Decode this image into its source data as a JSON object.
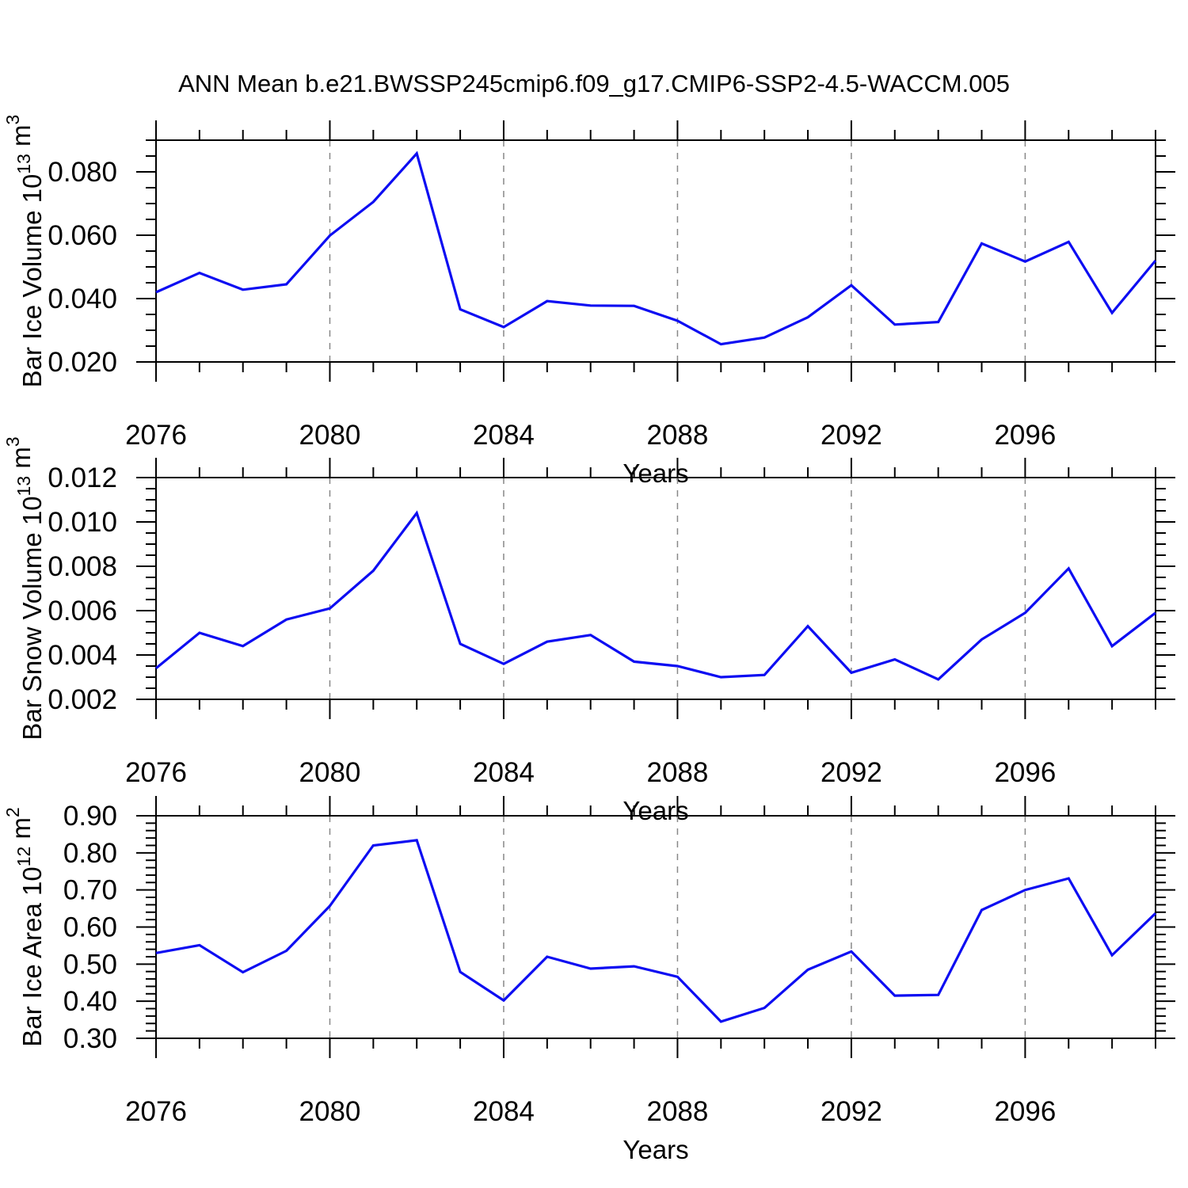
{
  "title": "ANN Mean b.e21.BWSSP245cmip6.f09_g17.CMIP6-SSP2-4.5-WACCM.005",
  "colors": {
    "line": "#0d0df2",
    "axis": "#000000",
    "grid": "#888888",
    "text": "#000000",
    "background": "#ffffff"
  },
  "x_axis": {
    "label": "Years",
    "xlim": [
      2076,
      2099
    ],
    "major_ticks": [
      2076,
      2080,
      2084,
      2088,
      2092,
      2096
    ],
    "tick_labels": [
      "2076",
      "2080",
      "2084",
      "2088",
      "2092",
      "2096"
    ],
    "minor_step": 1,
    "gridlines": [
      2080,
      2084,
      2088,
      2092,
      2096
    ]
  },
  "chart_data": [
    {
      "name": "ice-volume",
      "type": "line",
      "ylabel": "Bar Ice Volume 10^13 m^3",
      "ylabel_segments": [
        {
          "t": "Bar Ice Volume 10",
          "sup": false
        },
        {
          "t": "13",
          "sup": true
        },
        {
          "t": " m",
          "sup": false
        },
        {
          "t": "3",
          "sup": true
        }
      ],
      "xlabel": "Years",
      "x": [
        2076,
        2077,
        2078,
        2079,
        2080,
        2081,
        2082,
        2083,
        2084,
        2085,
        2086,
        2087,
        2088,
        2089,
        2090,
        2091,
        2092,
        2093,
        2094,
        2095,
        2096,
        2097,
        2098,
        2099
      ],
      "values": [
        0.042,
        0.0481,
        0.0428,
        0.0445,
        0.0599,
        0.0705,
        0.0858,
        0.0366,
        0.031,
        0.0392,
        0.0378,
        0.0377,
        0.033,
        0.0256,
        0.0277,
        0.0341,
        0.0442,
        0.0318,
        0.0326,
        0.0574,
        0.0517,
        0.0579,
        0.0355,
        0.052
      ],
      "ylim": [
        0.02,
        0.09
      ],
      "yticks": [
        {
          "v": 0.02,
          "label": "0.020"
        },
        {
          "v": 0.04,
          "label": "0.040"
        },
        {
          "v": 0.06,
          "label": "0.060"
        },
        {
          "v": 0.08,
          "label": "0.080"
        }
      ],
      "ytick_minor_step": 0.005,
      "grid": true
    },
    {
      "name": "snow-volume",
      "type": "line",
      "ylabel": "Bar Snow Volume 10^13 m^3",
      "ylabel_segments": [
        {
          "t": "Bar Snow Volume 10",
          "sup": false
        },
        {
          "t": "13",
          "sup": true
        },
        {
          "t": " m",
          "sup": false
        },
        {
          "t": "3",
          "sup": true
        }
      ],
      "xlabel": "Years",
      "x": [
        2076,
        2077,
        2078,
        2079,
        2080,
        2081,
        2082,
        2083,
        2084,
        2085,
        2086,
        2087,
        2088,
        2089,
        2090,
        2091,
        2092,
        2093,
        2094,
        2095,
        2096,
        2097,
        2098,
        2099
      ],
      "values": [
        0.0034,
        0.005,
        0.0044,
        0.0056,
        0.0061,
        0.0078,
        0.0104,
        0.0045,
        0.0036,
        0.0046,
        0.0049,
        0.0037,
        0.0035,
        0.003,
        0.0031,
        0.0053,
        0.0032,
        0.0038,
        0.0029,
        0.0047,
        0.0059,
        0.0079,
        0.0044,
        0.0059
      ],
      "ylim": [
        0.002,
        0.012
      ],
      "yticks": [
        {
          "v": 0.002,
          "label": "0.002"
        },
        {
          "v": 0.004,
          "label": "0.004"
        },
        {
          "v": 0.006,
          "label": "0.006"
        },
        {
          "v": 0.008,
          "label": "0.008"
        },
        {
          "v": 0.01,
          "label": "0.010"
        },
        {
          "v": 0.012,
          "label": "0.012"
        }
      ],
      "ytick_minor_step": 0.0005,
      "grid": true
    },
    {
      "name": "ice-area",
      "type": "line",
      "ylabel": "Bar Ice Area 10^12 m^2",
      "ylabel_segments": [
        {
          "t": "Bar Ice Area 10",
          "sup": false
        },
        {
          "t": "12",
          "sup": true
        },
        {
          "t": " m",
          "sup": false
        },
        {
          "t": "2",
          "sup": true
        }
      ],
      "xlabel": "Years",
      "x": [
        2076,
        2077,
        2078,
        2079,
        2080,
        2081,
        2082,
        2083,
        2084,
        2085,
        2086,
        2087,
        2088,
        2089,
        2090,
        2091,
        2092,
        2093,
        2094,
        2095,
        2096,
        2097,
        2098,
        2099
      ],
      "values": [
        0.53,
        0.551,
        0.478,
        0.536,
        0.657,
        0.82,
        0.834,
        0.479,
        0.402,
        0.52,
        0.488,
        0.494,
        0.466,
        0.345,
        0.382,
        0.485,
        0.534,
        0.415,
        0.417,
        0.646,
        0.7,
        0.731,
        0.524,
        0.637
      ],
      "ylim": [
        0.3,
        0.9
      ],
      "yticks": [
        {
          "v": 0.3,
          "label": "0.30"
        },
        {
          "v": 0.4,
          "label": "0.40"
        },
        {
          "v": 0.5,
          "label": "0.50"
        },
        {
          "v": 0.6,
          "label": "0.60"
        },
        {
          "v": 0.7,
          "label": "0.70"
        },
        {
          "v": 0.8,
          "label": "0.80"
        },
        {
          "v": 0.9,
          "label": "0.90"
        }
      ],
      "ytick_minor_step": 0.02,
      "grid": true
    }
  ]
}
